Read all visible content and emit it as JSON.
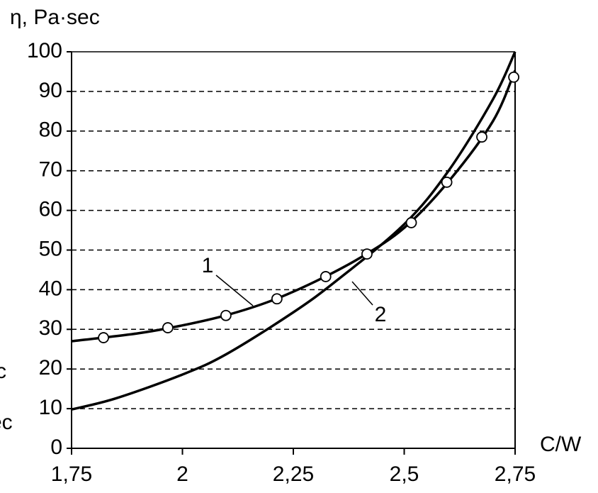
{
  "chart_data": {
    "type": "line",
    "ylabel": "η, Pa·sec",
    "xlabel": "C/W",
    "xlim": [
      1.75,
      2.75
    ],
    "xticks": [
      {
        "value": 1.75,
        "label": "1,75"
      },
      2,
      {
        "value": 2.25,
        "label": "2,25"
      },
      {
        "value": 2.5,
        "label": "2,5"
      },
      {
        "value": 2.75,
        "label": "2,75"
      }
    ],
    "ylim": [
      0,
      100
    ],
    "yticks": [
      0,
      10,
      20,
      30,
      40,
      50,
      60,
      70,
      80,
      90,
      100
    ],
    "grid": true,
    "series": [
      {
        "name": "1",
        "color": "#000000",
        "x": [
          1.75,
          1.9,
          2.0,
          2.1,
          2.2,
          2.3,
          2.4,
          2.5,
          2.6,
          2.7,
          2.75
        ],
        "values": [
          27.0,
          29.0,
          31.0,
          33.6,
          37.2,
          42.1,
          48.0,
          55.6,
          67.3,
          82.5,
          95.3
        ]
      },
      {
        "name": "2",
        "color": "#000000",
        "x": [
          1.75,
          1.85,
          2.0,
          2.1,
          2.25,
          2.35,
          2.5,
          2.6,
          2.7,
          2.75
        ],
        "values": [
          9.8,
          12.6,
          18.6,
          23.8,
          34.3,
          42.5,
          56.5,
          70.0,
          88.0,
          100
        ]
      },
      {
        "style": "markers",
        "color": "#000000",
        "x": [
          1.822,
          1.967,
          2.098,
          2.213,
          2.323,
          2.416,
          2.516,
          2.596,
          2.675,
          2.747
        ],
        "values": [
          27.9,
          30.4,
          33.5,
          37.7,
          43.3,
          49.0,
          56.9,
          67.1,
          78.5,
          93.6
        ]
      }
    ],
    "annotations": [
      "c",
      "ec"
    ]
  }
}
